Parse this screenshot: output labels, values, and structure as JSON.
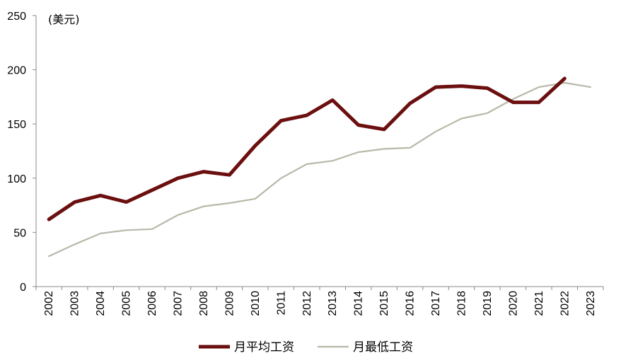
{
  "chart_data": {
    "type": "line",
    "unit_label": "(美元)",
    "x": [
      "2002",
      "2003",
      "2004",
      "2005",
      "2006",
      "2007",
      "2008",
      "2009",
      "2010",
      "2011",
      "2012",
      "2013",
      "2014",
      "2015",
      "2016",
      "2017",
      "2018",
      "2019",
      "2020",
      "2021",
      "2022",
      "2023"
    ],
    "ylim": [
      0,
      250
    ],
    "yticks": [
      0,
      50,
      100,
      150,
      200,
      250
    ],
    "grid": false,
    "legend_position": "bottom",
    "series": [
      {
        "name": "月平均工资",
        "color": "#6b0f0f",
        "values": [
          62,
          78,
          84,
          78,
          89,
          100,
          106,
          103,
          130,
          153,
          158,
          172,
          149,
          145,
          169,
          184,
          185,
          183,
          170,
          170,
          192,
          null
        ]
      },
      {
        "name": "月最低工资",
        "color": "#b8b8aa",
        "values": [
          28,
          39,
          49,
          52,
          53,
          66,
          74,
          77,
          81,
          100,
          113,
          116,
          124,
          127,
          128,
          143,
          155,
          160,
          173,
          184,
          188,
          184
        ]
      }
    ]
  }
}
